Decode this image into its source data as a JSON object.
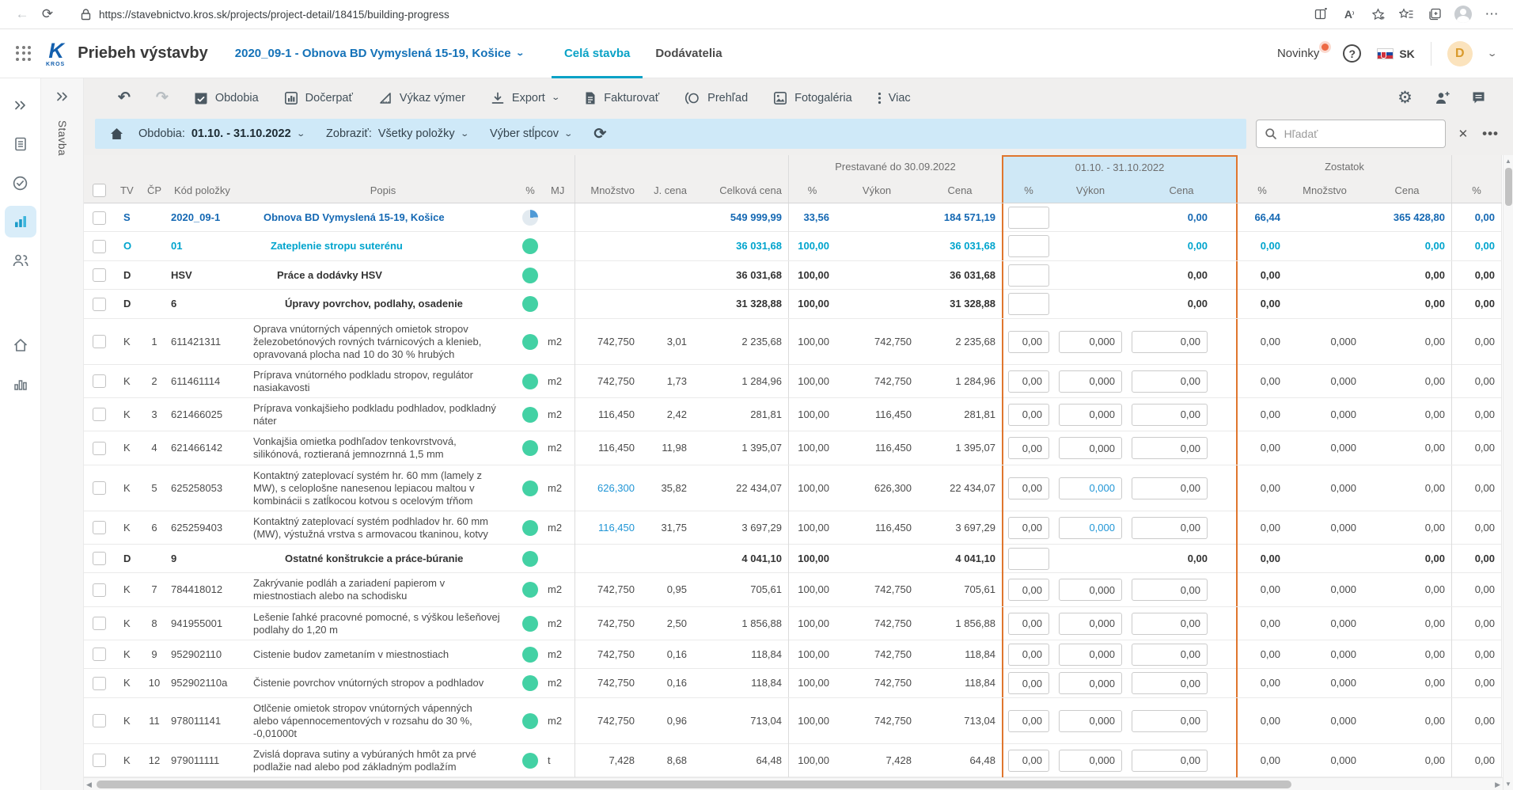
{
  "browser": {
    "url": "https://stavebnictvo.kros.sk/projects/project-detail/18415/building-progress"
  },
  "app_header": {
    "title": "Priebeh výstavby",
    "project_selector": "2020_09-1 - Obnova BD Vymyslená 15-19, Košice",
    "tabs": [
      {
        "label": "Celá stavba",
        "active": true
      },
      {
        "label": "Dodávatelia",
        "active": false
      }
    ],
    "news_label": "Novinky",
    "help_label": "?",
    "lang": "SK",
    "avatar_initial": "D"
  },
  "side_panel": {
    "label": "Stavba"
  },
  "toolbar": {
    "obdobia": "Obdobia",
    "docerpat": "Dočerpať",
    "vykaz_vymer": "Výkaz výmer",
    "export": "Export",
    "fakturovat": "Fakturovať",
    "prehlad": "Prehľad",
    "fotogaleria": "Fotogaléria",
    "viac": "Viac"
  },
  "filter": {
    "periods_label": "Obdobia:",
    "periods_value": "01.10. - 31.10.2022",
    "show_label": "Zobraziť:",
    "show_value": "Všetky položky",
    "columns_label": "Výber stĺpcov",
    "search_placeholder": "Hľadať"
  },
  "table": {
    "group_headers": {
      "built": "Prestavané do 30.09.2022",
      "current": "01.10. - 31.10.2022",
      "remaining": "Zostatok"
    },
    "columns": [
      {
        "key": "cb",
        "label": ""
      },
      {
        "key": "tv",
        "label": "TV"
      },
      {
        "key": "num",
        "label": "ČP"
      },
      {
        "key": "code",
        "label": "Kód položky"
      },
      {
        "key": "desc",
        "label": "Popis"
      },
      {
        "key": "pct",
        "label": "%"
      },
      {
        "key": "mj",
        "label": "MJ"
      },
      {
        "key": "qty",
        "label": "Množstvo"
      },
      {
        "key": "unit",
        "label": "J. cena"
      },
      {
        "key": "total",
        "label": "Celková cena"
      },
      {
        "key": "bp",
        "label": "%"
      },
      {
        "key": "bv",
        "label": "Výkon"
      },
      {
        "key": "bc",
        "label": "Cena"
      },
      {
        "key": "cp",
        "label": "%"
      },
      {
        "key": "cv",
        "label": "Výkon"
      },
      {
        "key": "cc",
        "label": "Cena"
      },
      {
        "key": "rp",
        "label": "%"
      },
      {
        "key": "rq",
        "label": "Množstvo"
      },
      {
        "key": "rc",
        "label": "Cena"
      },
      {
        "key": "lp",
        "label": "%"
      }
    ],
    "rows": [
      {
        "type": "s",
        "tv": "S",
        "num": "",
        "code": "2020_09-1",
        "desc": "Obnova BD Vymyslená 15-19, Košice",
        "indent": 13,
        "prog": "pie",
        "mj": "",
        "qty": "",
        "unit": "",
        "total": "549 999,99",
        "bp": "33,56",
        "bv": "",
        "bc": "184 571,19",
        "ip": "",
        "iv": null,
        "ic": null,
        "cc": "0,00",
        "rp": "66,44",
        "rq": "",
        "rc": "365 428,80",
        "lp": "0,00"
      },
      {
        "type": "o",
        "tv": "O",
        "num": "",
        "code": "01",
        "desc": "Zateplenie stropu suterénu",
        "indent": 22,
        "prog": "dot",
        "mj": "",
        "qty": "",
        "unit": "",
        "total": "36 031,68",
        "bp": "100,00",
        "bv": "",
        "bc": "36 031,68",
        "ip": "",
        "iv": null,
        "ic": null,
        "cc": "0,00",
        "rp": "0,00",
        "rq": "",
        "rc": "0,00",
        "lp": "0,00"
      },
      {
        "type": "d",
        "tv": "D",
        "num": "",
        "code": "HSV",
        "desc": "Práce a dodávky HSV",
        "indent": 30,
        "prog": "dot",
        "mj": "",
        "qty": "",
        "unit": "",
        "total": "36 031,68",
        "bp": "100,00",
        "bv": "",
        "bc": "36 031,68",
        "ip": "",
        "iv": null,
        "ic": null,
        "cc": "0,00",
        "rp": "0,00",
        "rq": "",
        "rc": "0,00",
        "lp": "0,00"
      },
      {
        "type": "d",
        "tv": "D",
        "num": "",
        "code": "6",
        "desc": "Úpravy povrchov, podlahy, osadenie",
        "indent": 40,
        "prog": "dot",
        "mj": "",
        "qty": "",
        "unit": "",
        "total": "31 328,88",
        "bp": "100,00",
        "bv": "",
        "bc": "31 328,88",
        "ip": "",
        "iv": null,
        "ic": null,
        "cc": "0,00",
        "rp": "0,00",
        "rq": "",
        "rc": "0,00",
        "lp": "0,00"
      },
      {
        "type": "k",
        "tv": "K",
        "num": "1",
        "code": "611421311",
        "desc": "Oprava vnútorných vápenných omietok stropov železobetónových rovných tvárnicových a klenieb, opravovaná plocha nad 10 do 30 % hrubých",
        "indent": 0,
        "prog": "dot",
        "mj": "m2",
        "qty": "742,750",
        "unit": "3,01",
        "total": "2 235,68",
        "bp": "100,00",
        "bv": "742,750",
        "bc": "2 235,68",
        "ip": "0,00",
        "iv": "0,000",
        "ic": "0,00",
        "rp": "0,00",
        "rq": "0,000",
        "rc": "0,00",
        "lp": "0,00"
      },
      {
        "type": "k",
        "tv": "K",
        "num": "2",
        "code": "611461114",
        "desc": "Príprava vnútorného podkladu stropov, regulátor nasiakavosti",
        "indent": 0,
        "prog": "dot",
        "mj": "m2",
        "qty": "742,750",
        "unit": "1,73",
        "total": "1 284,96",
        "bp": "100,00",
        "bv": "742,750",
        "bc": "1 284,96",
        "ip": "0,00",
        "iv": "0,000",
        "ic": "0,00",
        "rp": "0,00",
        "rq": "0,000",
        "rc": "0,00",
        "lp": "0,00"
      },
      {
        "type": "k",
        "tv": "K",
        "num": "3",
        "code": "621466025",
        "desc": "Príprava vonkajšieho podkladu podhladov, podkladný náter",
        "indent": 0,
        "prog": "dot",
        "mj": "m2",
        "qty": "116,450",
        "unit": "2,42",
        "total": "281,81",
        "bp": "100,00",
        "bv": "116,450",
        "bc": "281,81",
        "ip": "0,00",
        "iv": "0,000",
        "ic": "0,00",
        "rp": "0,00",
        "rq": "0,000",
        "rc": "0,00",
        "lp": "0,00"
      },
      {
        "type": "k",
        "tv": "K",
        "num": "4",
        "code": "621466142",
        "desc": "Vonkajšia omietka podhľadov tenkovrstvová, silikónová, roztieraná jemnozrnná 1,5 mm",
        "indent": 0,
        "prog": "dot",
        "mj": "m2",
        "qty": "116,450",
        "unit": "11,98",
        "total": "1 395,07",
        "bp": "100,00",
        "bv": "116,450",
        "bc": "1 395,07",
        "ip": "0,00",
        "iv": "0,000",
        "ic": "0,00",
        "rp": "0,00",
        "rq": "0,000",
        "rc": "0,00",
        "lp": "0,00"
      },
      {
        "type": "k",
        "tv": "K",
        "num": "5",
        "code": "625258053",
        "desc": "Kontaktný zateplovací systém hr. 60 mm (lamely z MW), s celoplošne nanesenou lepiacou maltou v kombinácii s zatĺkocou kotvou s ocelovým tŕňom",
        "indent": 0,
        "prog": "dot",
        "mj": "m2",
        "qty": "626,300",
        "qty_blue": true,
        "unit": "35,82",
        "total": "22 434,07",
        "bp": "100,00",
        "bv": "626,300",
        "bc": "22 434,07",
        "ip": "0,00",
        "iv": "0,000",
        "iv_blue": true,
        "ic": "0,00",
        "rp": "0,00",
        "rq": "0,000",
        "rc": "0,00",
        "lp": "0,00"
      },
      {
        "type": "k",
        "tv": "K",
        "num": "6",
        "code": "625259403",
        "desc": "Kontaktný zateplovací systém podhladov hr. 60 mm (MW), výstužná vrstva s armovacou tkaninou, kotvy",
        "indent": 0,
        "prog": "dot",
        "mj": "m2",
        "qty": "116,450",
        "qty_blue": true,
        "unit": "31,75",
        "total": "3 697,29",
        "bp": "100,00",
        "bv": "116,450",
        "bc": "3 697,29",
        "ip": "0,00",
        "iv": "0,000",
        "iv_blue": true,
        "ic": "0,00",
        "rp": "0,00",
        "rq": "0,000",
        "rc": "0,00",
        "lp": "0,00"
      },
      {
        "type": "d",
        "tv": "D",
        "num": "",
        "code": "9",
        "desc": "Ostatné konštrukcie a práce-búranie",
        "indent": 40,
        "prog": "dot",
        "mj": "",
        "qty": "",
        "unit": "",
        "total": "4 041,10",
        "bp": "100,00",
        "bv": "",
        "bc": "4 041,10",
        "ip": "",
        "iv": null,
        "ic": null,
        "cc": "0,00",
        "rp": "0,00",
        "rq": "",
        "rc": "0,00",
        "lp": "0,00"
      },
      {
        "type": "k",
        "tv": "K",
        "num": "7",
        "code": "784418012",
        "desc": "Zakrývanie podláh a zariadení papierom v miestnostiach alebo na schodisku",
        "indent": 0,
        "prog": "dot",
        "mj": "m2",
        "qty": "742,750",
        "unit": "0,95",
        "total": "705,61",
        "bp": "100,00",
        "bv": "742,750",
        "bc": "705,61",
        "ip": "0,00",
        "iv": "0,000",
        "ic": "0,00",
        "rp": "0,00",
        "rq": "0,000",
        "rc": "0,00",
        "lp": "0,00"
      },
      {
        "type": "k",
        "tv": "K",
        "num": "8",
        "code": "941955001",
        "desc": "Lešenie ľahké pracovné pomocné, s výškou lešeňovej podlahy do 1,20 m",
        "indent": 0,
        "prog": "dot",
        "mj": "m2",
        "qty": "742,750",
        "unit": "2,50",
        "total": "1 856,88",
        "bp": "100,00",
        "bv": "742,750",
        "bc": "1 856,88",
        "ip": "0,00",
        "iv": "0,000",
        "ic": "0,00",
        "rp": "0,00",
        "rq": "0,000",
        "rc": "0,00",
        "lp": "0,00"
      },
      {
        "type": "k",
        "tv": "K",
        "num": "9",
        "code": "952902110",
        "desc": "Cistenie budov zametaním v miestnostiach",
        "indent": 0,
        "prog": "dot",
        "mj": "m2",
        "qty": "742,750",
        "unit": "0,16",
        "total": "118,84",
        "bp": "100,00",
        "bv": "742,750",
        "bc": "118,84",
        "ip": "0,00",
        "iv": "0,000",
        "ic": "0,00",
        "rp": "0,00",
        "rq": "0,000",
        "rc": "0,00",
        "lp": "0,00"
      },
      {
        "type": "k",
        "tv": "K",
        "num": "10",
        "code": "952902110a",
        "desc": "Čistenie povrchov vnútorných stropov a podhladov",
        "indent": 0,
        "prog": "dot",
        "mj": "m2",
        "qty": "742,750",
        "unit": "0,16",
        "total": "118,84",
        "bp": "100,00",
        "bv": "742,750",
        "bc": "118,84",
        "ip": "0,00",
        "iv": "0,000",
        "ic": "0,00",
        "rp": "0,00",
        "rq": "0,000",
        "rc": "0,00",
        "lp": "0,00"
      },
      {
        "type": "k",
        "tv": "K",
        "num": "11",
        "code": "978011141",
        "desc": "Otlčenie omietok stropov vnútorných vápenných alebo vápennocementových v rozsahu do 30 %, -0,01000t",
        "indent": 0,
        "prog": "dot",
        "mj": "m2",
        "qty": "742,750",
        "unit": "0,96",
        "total": "713,04",
        "bp": "100,00",
        "bv": "742,750",
        "bc": "713,04",
        "ip": "0,00",
        "iv": "0,000",
        "ic": "0,00",
        "rp": "0,00",
        "rq": "0,000",
        "rc": "0,00",
        "lp": "0,00"
      },
      {
        "type": "k",
        "tv": "K",
        "num": "12",
        "code": "979011111",
        "desc": "Zvislá doprava sutiny a vybúraných hmôt za prvé podlažie nad alebo pod základným podlažím",
        "indent": 0,
        "prog": "dot",
        "mj": "t",
        "qty": "7,428",
        "unit": "8,68",
        "total": "64,48",
        "bp": "100,00",
        "bv": "7,428",
        "bc": "64,48",
        "ip": "0,00",
        "iv": "0,000",
        "ic": "0,00",
        "rp": "0,00",
        "rq": "0,000",
        "rc": "0,00",
        "lp": "0,00"
      }
    ]
  }
}
